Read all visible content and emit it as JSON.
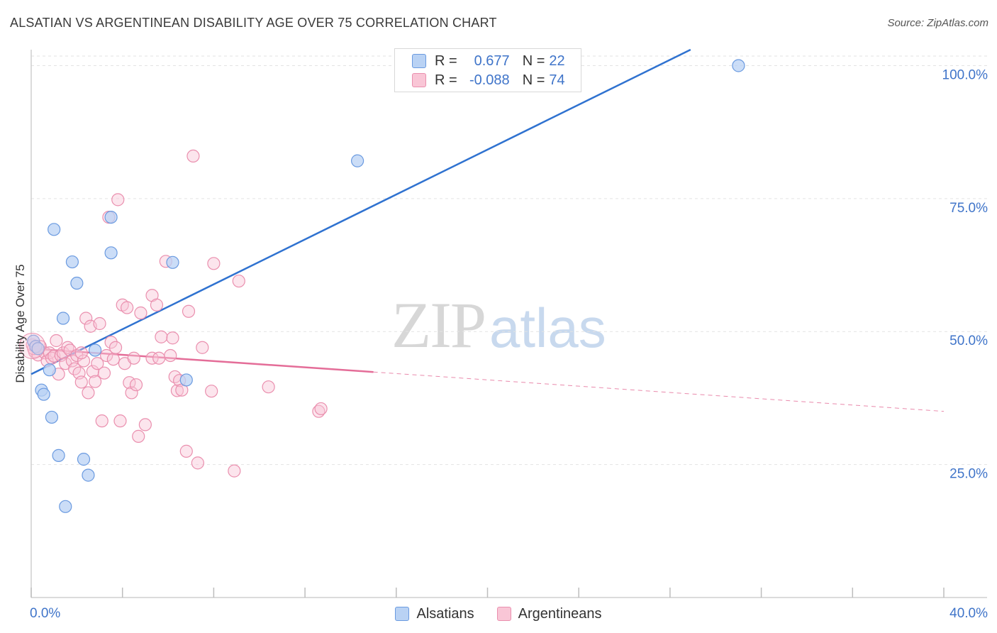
{
  "title": "ALSATIAN VS ARGENTINEAN DISABILITY AGE OVER 75 CORRELATION CHART",
  "source": "Source: ZipAtlas.com",
  "watermark": {
    "zip": "ZIP",
    "atlas": "atlas"
  },
  "legend": {
    "r_label": "R =",
    "n_label": "N =",
    "series": [
      {
        "name": "Alsatians",
        "r": "0.677",
        "n": "22"
      },
      {
        "name": "Argentineans",
        "r": "-0.088",
        "n": "74"
      }
    ]
  },
  "colors": {
    "blue_fill": "#b9d2f4",
    "blue_stroke": "#6a9ae0",
    "blue_line": "#2f72d0",
    "pink_fill": "#f9c6d6",
    "pink_stroke": "#ea8fae",
    "pink_line": "#e46d98",
    "tick_label": "#3f74c9",
    "grid": "#e3e3e3"
  },
  "chart_data": {
    "type": "scatter",
    "title": "ALSATIAN VS ARGENTINEAN DISABILITY AGE OVER 75 CORRELATION CHART",
    "xlabel": "",
    "ylabel": "Disability Age Over 75",
    "xlim": [
      0,
      40
    ],
    "ylim": [
      0,
      103
    ],
    "x_tick_labels": [
      {
        "value": 0,
        "label": "0.0%"
      },
      {
        "value": 40,
        "label": "40.0%"
      }
    ],
    "y_tick_labels": [
      {
        "value": 25,
        "label": "25.0%"
      },
      {
        "value": 50,
        "label": "50.0%"
      },
      {
        "value": 75,
        "label": "75.0%"
      },
      {
        "value": 100,
        "label": "100.0%"
      }
    ],
    "series": [
      {
        "name": "Alsatians",
        "r": 0.677,
        "n": 22,
        "trend": {
          "x0": 0,
          "y0": 42.0,
          "x1": 28.9,
          "y1": 103.0,
          "dashed_to": null
        },
        "points": [
          [
            0.1,
            48.2
          ],
          [
            0.2,
            47.2
          ],
          [
            0.3,
            46.8
          ],
          [
            0.45,
            39.0
          ],
          [
            0.55,
            38.2
          ],
          [
            0.8,
            42.8
          ],
          [
            0.9,
            33.9
          ],
          [
            1.0,
            69.2
          ],
          [
            1.2,
            26.7
          ],
          [
            1.4,
            52.5
          ],
          [
            1.5,
            17.1
          ],
          [
            1.8,
            63.1
          ],
          [
            2.0,
            59.1
          ],
          [
            2.3,
            26.0
          ],
          [
            2.5,
            23.0
          ],
          [
            2.8,
            46.5
          ],
          [
            3.5,
            64.8
          ],
          [
            3.5,
            71.5
          ],
          [
            6.2,
            63.0
          ],
          [
            6.8,
            40.9
          ],
          [
            14.3,
            82.1
          ],
          [
            31.0,
            100.0
          ]
        ]
      },
      {
        "name": "Argentineans",
        "r": -0.088,
        "n": 74,
        "trend": {
          "x0": 0,
          "y0": 46.8,
          "x1": 15.0,
          "y1": 42.4,
          "dashed_to": [
            40.0,
            35.0
          ]
        },
        "points": [
          [
            0.05,
            47.5
          ],
          [
            0.15,
            46.2
          ],
          [
            0.3,
            45.6
          ],
          [
            0.4,
            47.2
          ],
          [
            0.6,
            46.0
          ],
          [
            0.7,
            44.5
          ],
          [
            0.8,
            46.0
          ],
          [
            0.9,
            45.0
          ],
          [
            1.0,
            45.4
          ],
          [
            1.1,
            48.3
          ],
          [
            1.2,
            42.0
          ],
          [
            1.3,
            45.5
          ],
          [
            1.4,
            46.0
          ],
          [
            1.5,
            44.0
          ],
          [
            1.6,
            47.0
          ],
          [
            1.7,
            46.5
          ],
          [
            1.8,
            44.5
          ],
          [
            1.9,
            43.0
          ],
          [
            2.0,
            45.5
          ],
          [
            2.1,
            42.2
          ],
          [
            2.2,
            40.5
          ],
          [
            2.3,
            44.5
          ],
          [
            2.4,
            52.5
          ],
          [
            2.5,
            38.5
          ],
          [
            2.6,
            51.0
          ],
          [
            2.7,
            42.5
          ],
          [
            2.8,
            40.6
          ],
          [
            2.9,
            44.0
          ],
          [
            3.0,
            51.5
          ],
          [
            3.1,
            33.2
          ],
          [
            3.2,
            42.2
          ],
          [
            3.3,
            45.5
          ],
          [
            3.4,
            71.5
          ],
          [
            3.5,
            48.0
          ],
          [
            3.6,
            44.8
          ],
          [
            3.7,
            47.0
          ],
          [
            3.8,
            74.8
          ],
          [
            3.9,
            33.2
          ],
          [
            4.0,
            55.0
          ],
          [
            4.1,
            44.0
          ],
          [
            4.2,
            54.5
          ],
          [
            4.3,
            40.4
          ],
          [
            4.4,
            38.5
          ],
          [
            4.5,
            45.0
          ],
          [
            4.6,
            40.0
          ],
          [
            4.7,
            30.3
          ],
          [
            4.8,
            53.5
          ],
          [
            5.0,
            32.5
          ],
          [
            5.3,
            45.0
          ],
          [
            5.3,
            56.8
          ],
          [
            5.5,
            55.0
          ],
          [
            5.6,
            45.0
          ],
          [
            5.7,
            49.0
          ],
          [
            5.9,
            63.2
          ],
          [
            6.1,
            45.5
          ],
          [
            6.2,
            48.8
          ],
          [
            6.3,
            41.5
          ],
          [
            6.4,
            38.9
          ],
          [
            6.5,
            40.8
          ],
          [
            6.6,
            39.0
          ],
          [
            6.8,
            27.5
          ],
          [
            6.9,
            53.8
          ],
          [
            7.1,
            83.0
          ],
          [
            7.3,
            25.3
          ],
          [
            7.5,
            47.0
          ],
          [
            7.9,
            38.8
          ],
          [
            8.0,
            62.8
          ],
          [
            8.9,
            23.8
          ],
          [
            9.1,
            59.5
          ],
          [
            10.4,
            39.6
          ],
          [
            12.6,
            35.0
          ],
          [
            12.7,
            35.5
          ],
          [
            0.1,
            46.8
          ],
          [
            2.2,
            46.0
          ]
        ]
      }
    ]
  }
}
